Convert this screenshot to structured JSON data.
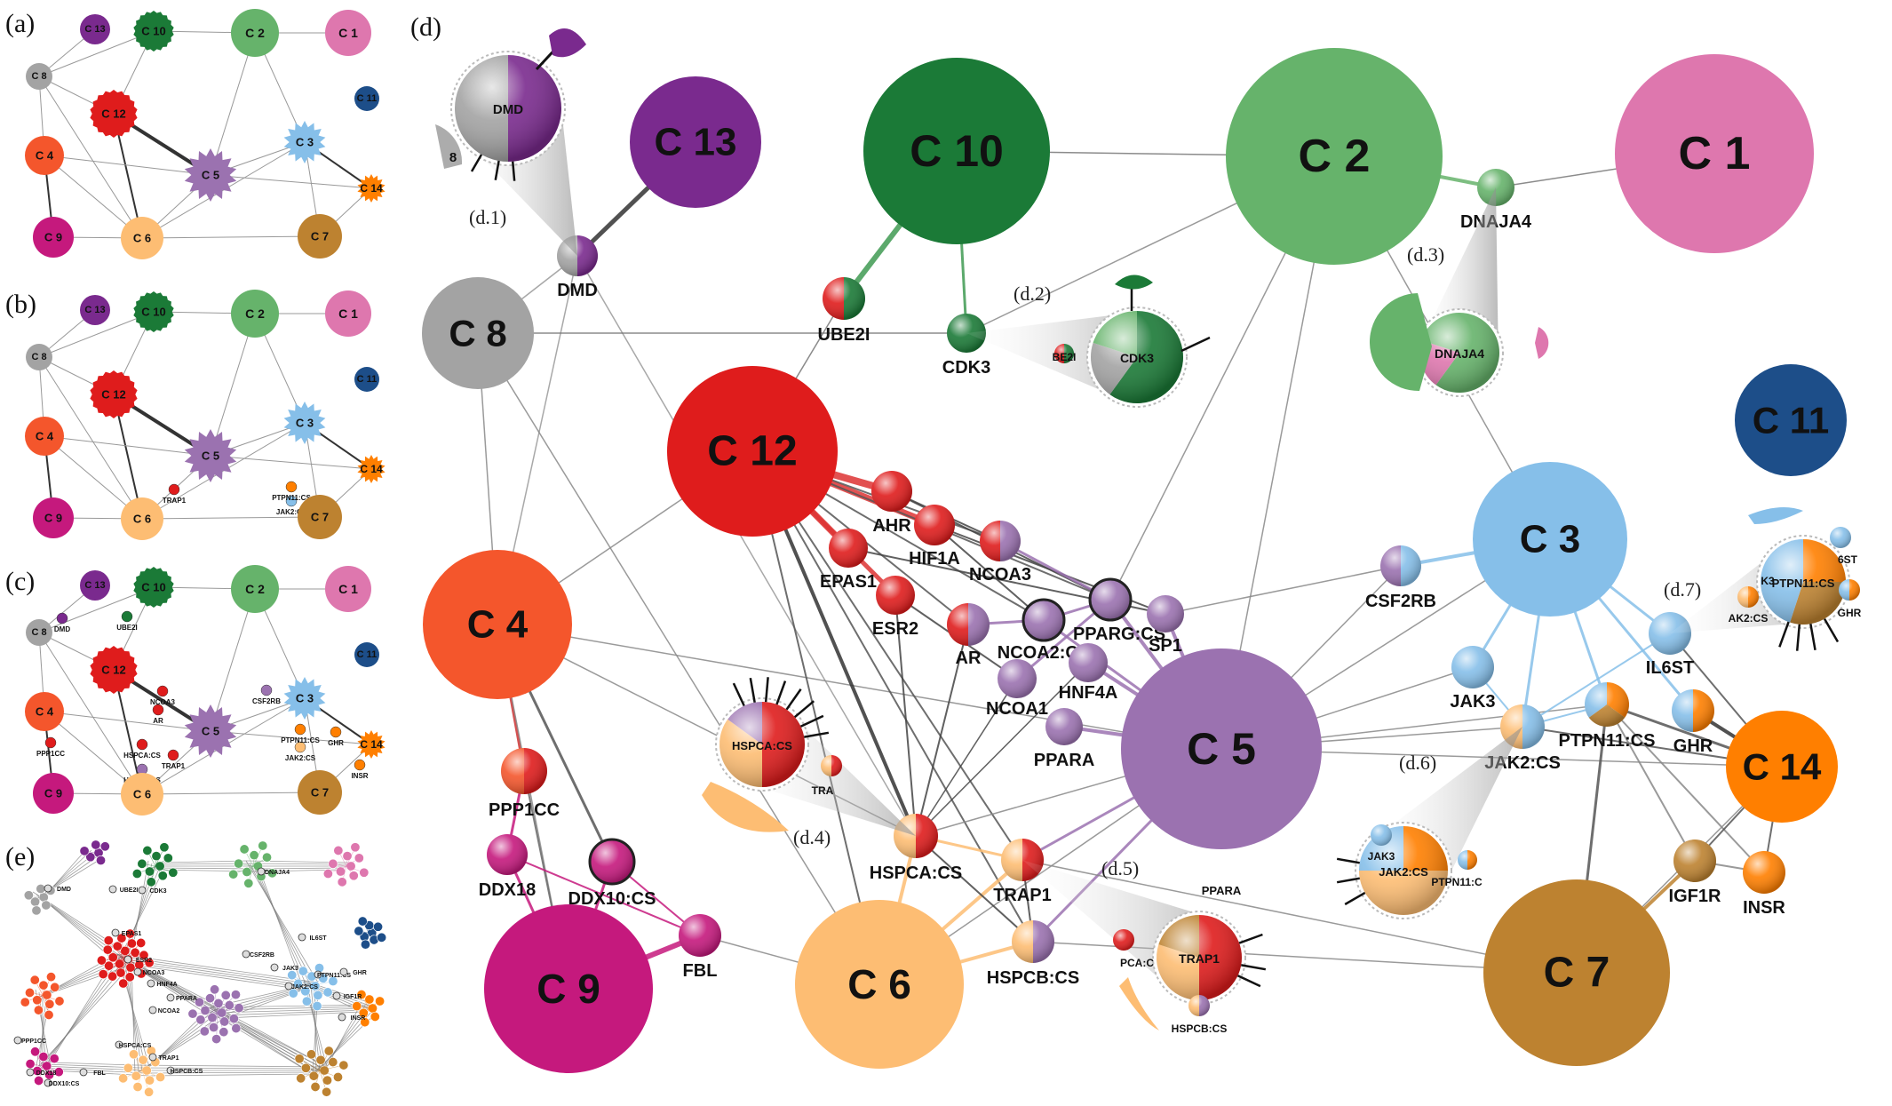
{
  "panels": {
    "a": "(a)",
    "b": "(b)",
    "c": "(c)",
    "d": "(d)",
    "e": "(e)"
  },
  "callouts": {
    "d1": "(d.1)",
    "d2": "(d.2)",
    "d3": "(d.3)",
    "d4": "(d.4)",
    "d5": "(d.5)",
    "d6": "(d.6)",
    "d7": "(d.7)"
  },
  "colors": {
    "C1": "#de77ae",
    "C2": "#66b36b",
    "C3": "#86bfe9",
    "C4": "#f4562c",
    "C5": "#9b72b0",
    "C6": "#fdbd73",
    "C7": "#bd8230",
    "C8": "#a3a3a3",
    "C9": "#c5197d",
    "C10": "#1b7a37",
    "C11": "#1d4e89",
    "C12": "#df1c1c",
    "C13": "#7a2a8e",
    "C14": "#ff7f00"
  },
  "clusters": {
    "C1": "C 1",
    "C2": "C 2",
    "C3": "C 3",
    "C4": "C 4",
    "C5": "C 5",
    "C6": "C 6",
    "C7": "C 7",
    "C8": "C 8",
    "C9": "C 9",
    "C10": "C 10",
    "C11": "C 11",
    "C12": "C 12",
    "C13": "C 13",
    "C14": "C 14"
  },
  "nodes": {
    "DMD": "DMD",
    "UBE2I": "UBE2I",
    "CDK3": "CDK3",
    "DNAJA4": "DNAJA4",
    "AHR": "AHR",
    "HIF1A": "HIF1A",
    "EPAS1": "EPAS1",
    "ESR2": "ESR2",
    "NCOA3": "NCOA3",
    "AR": "AR",
    "NCOA2CS": "NCOA2:CS",
    "PPARGCS": "PPARG:CS",
    "SP1": "SP1",
    "NCOA1": "NCOA1",
    "HNF4A": "HNF4A",
    "PPARA": "PPARA",
    "CSF2RB": "CSF2RB",
    "JAK3": "JAK3",
    "IL6ST": "IL6ST",
    "JAK2CS": "JAK2:CS",
    "PTPN11CS": "PTPN11:CS",
    "GHR": "GHR",
    "IGF1R": "IGF1R",
    "INSR": "INSR",
    "PPP1CC": "PPP1CC",
    "DDX18": "DDX18",
    "DDX10CS": "DDX10:CS",
    "FBL": "FBL",
    "HSPCACS": "HSPCA:CS",
    "TRAP1": "TRAP1",
    "HSPCBCS": "HSPCB:CS"
  },
  "zoom_labels": {
    "d1_main": "DMD",
    "d1_side": "8",
    "d2_main": "CDK3",
    "d2_side": "BE2I",
    "d3_main": "DNAJA4",
    "d4_main": "HSPCA:CS",
    "d4_side": "TRA",
    "d5_main": "TRAP1",
    "d5_side1": "PPARA",
    "d5_side2": "PCA:C",
    "d5_side3": "HSPCB:CS",
    "d6_main": "JAK2:CS",
    "d6_side1": "JAK3",
    "d6_side2": "PTPN11:C",
    "d7_main": "PTPN11:CS",
    "d7_side1": "6ST",
    "d7_side2": "K3",
    "d7_side3": "AK2:CS",
    "d7_side4": "GHR"
  },
  "mini_panels": {
    "b_extra": [
      "TRAP1",
      "JAK2:CS",
      "PTPN11:CS"
    ],
    "c_extra": [
      "DMD",
      "UBE2I",
      "NCOA3",
      "AR",
      "CSF2RB",
      "PPP1CC",
      "HSPCA:CS",
      "TRAP1",
      "HSPCB:CS",
      "JAK2:CS",
      "PTPN11:CS",
      "GHR",
      "INSR"
    ],
    "e_extra": [
      "DMD",
      "UBE2I",
      "CDK3",
      "DNAJA4",
      "EPAS1",
      "ESR2",
      "NCOA3",
      "HNF4A",
      "PPARA",
      "NCOA2",
      "CSF2RB",
      "JAK3",
      "IL6ST",
      "PTPN11:CS",
      "JAK2:CS",
      "GHR",
      "IGF1R",
      "INSR",
      "PPP1CC",
      "DDX18",
      "DDX10:CS",
      "FBL",
      "HSPCA:CS",
      "TRAP1",
      "HSPCB:CS"
    ]
  }
}
